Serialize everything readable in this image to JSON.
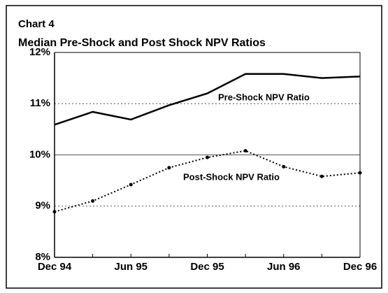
{
  "chart_data": {
    "type": "line",
    "title": "Chart 4",
    "subtitle": "Median Pre-Shock and Post Shock NPV Ratios",
    "categories": [
      "Dec 94",
      null,
      "Jun 95",
      null,
      "Dec 95",
      null,
      "Jun 96",
      null,
      "Dec 96"
    ],
    "series": [
      {
        "name": "Pre-Shock NPV Ratio",
        "color": "#000000",
        "style": "solid",
        "values": [
          10.59,
          10.84,
          10.69,
          10.97,
          11.2,
          11.58,
          11.58,
          11.5,
          11.53
        ]
      },
      {
        "name": "Post-Shock NPV Ratio",
        "color": "#000000",
        "style": "dotted",
        "values": [
          8.89,
          9.1,
          9.42,
          9.75,
          9.95,
          10.08,
          9.77,
          9.58,
          9.65
        ]
      }
    ],
    "ylim": [
      8,
      12
    ],
    "yticks": [
      {
        "value": 8,
        "label": "8%"
      },
      {
        "value": 9,
        "label": "9%"
      },
      {
        "value": 10,
        "label": "10%"
      },
      {
        "value": 11,
        "label": "11%"
      },
      {
        "value": 12,
        "label": "12%"
      }
    ],
    "grid": true
  }
}
